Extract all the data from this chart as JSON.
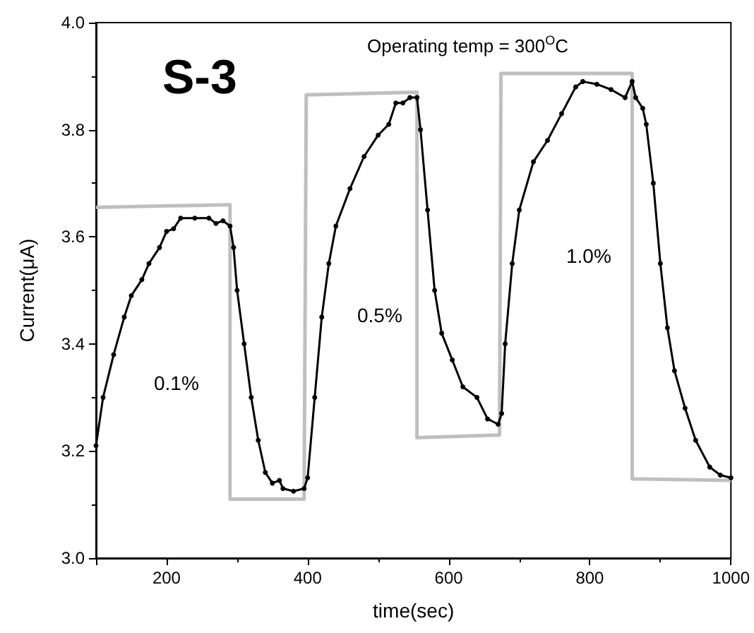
{
  "chart_data": {
    "type": "line",
    "xlabel": "time(sec)",
    "ylabel": "Current(μA)",
    "xlim": [
      100,
      1000
    ],
    "xticks": [
      {
        "value": 100,
        "label": null
      },
      200,
      400,
      600,
      800,
      1000
    ],
    "ylim": [
      3.0,
      4.0
    ],
    "yticks": [
      {
        "value": 3.0,
        "label": "3.0"
      },
      3.2,
      3.4,
      3.6,
      3.8,
      {
        "value": 4.0,
        "label": "4.0"
      }
    ],
    "grid": false,
    "annotations": [
      "S-3",
      "Operating temp = 300$^{O}$C",
      "0.1%",
      "0.5%",
      "1.0%"
    ],
    "series": [
      {
        "color": "#bfbfbf",
        "marker": "none",
        "x": [
          100,
          290,
          290,
          395,
          398,
          555,
          555,
          672,
          674,
          860,
          860,
          1000
        ],
        "values": [
          3.655,
          3.66,
          3.11,
          3.11,
          3.865,
          3.87,
          3.225,
          3.23,
          3.905,
          3.905,
          3.148,
          3.145
        ]
      },
      {
        "color": "#000000",
        "marker": "circle",
        "x": [
          100,
          110,
          125,
          140,
          150,
          165,
          175,
          190,
          200,
          210,
          220,
          240,
          260,
          270,
          280,
          290,
          295,
          300,
          310,
          320,
          330,
          340,
          350,
          360,
          365,
          380,
          395,
          400,
          410,
          420,
          430,
          440,
          460,
          480,
          500,
          515,
          525,
          535,
          545,
          555,
          560,
          570,
          580,
          590,
          605,
          620,
          640,
          655,
          670,
          675,
          680,
          690,
          700,
          720,
          740,
          760,
          780,
          790,
          810,
          830,
          850,
          860,
          865,
          875,
          880,
          890,
          900,
          910,
          920,
          935,
          950,
          970,
          985,
          1000
        ],
        "values": [
          3.21,
          3.3,
          3.38,
          3.45,
          3.49,
          3.52,
          3.55,
          3.58,
          3.61,
          3.615,
          3.635,
          3.635,
          3.635,
          3.625,
          3.63,
          3.62,
          3.58,
          3.5,
          3.4,
          3.3,
          3.22,
          3.16,
          3.14,
          3.145,
          3.13,
          3.125,
          3.13,
          3.15,
          3.3,
          3.45,
          3.55,
          3.62,
          3.69,
          3.75,
          3.79,
          3.81,
          3.85,
          3.85,
          3.86,
          3.86,
          3.8,
          3.65,
          3.5,
          3.42,
          3.37,
          3.32,
          3.3,
          3.26,
          3.25,
          3.27,
          3.4,
          3.55,
          3.65,
          3.74,
          3.78,
          3.83,
          3.88,
          3.89,
          3.885,
          3.875,
          3.86,
          3.89,
          3.86,
          3.84,
          3.81,
          3.7,
          3.55,
          3.43,
          3.35,
          3.28,
          3.22,
          3.17,
          3.155,
          3.15
        ]
      }
    ]
  }
}
